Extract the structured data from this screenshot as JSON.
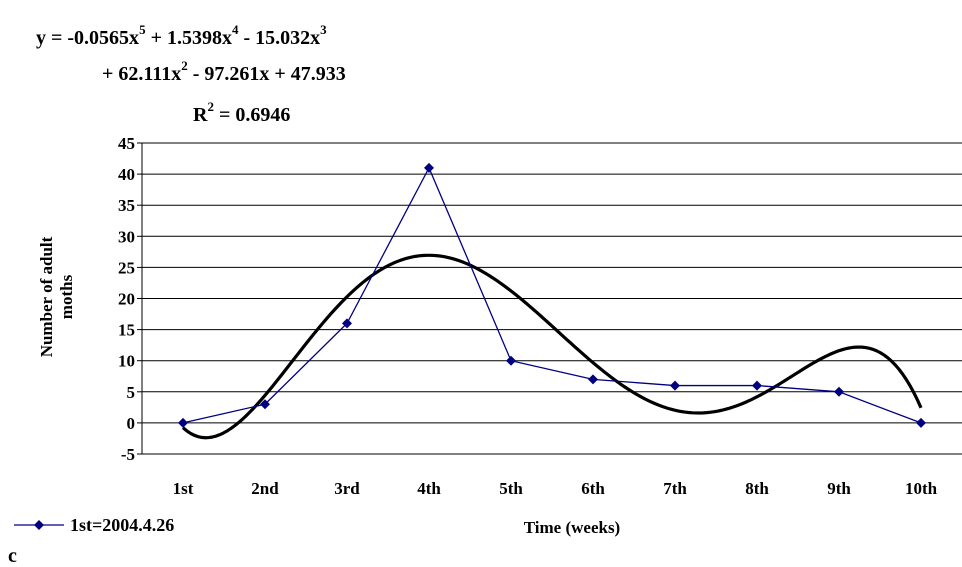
{
  "chart_data": {
    "type": "line",
    "equation": {
      "line1": "y = -0.0565x",
      "line1_exp1": "5",
      "line1_b": " + 1.5398x",
      "line1_exp2": "4",
      "line1_c": " - 15.032x",
      "line1_exp3": "3",
      "line2": "+ 62.111x",
      "line2_exp": "2",
      "line2_b": " - 97.261x + 47.933",
      "r2_a": "R",
      "r2_exp": "2",
      "r2_b": " = 0.6946"
    },
    "categories": [
      "1st",
      "2nd",
      "3rd",
      "4th",
      "5th",
      "6th",
      "7th",
      "8th",
      "9th",
      "10th"
    ],
    "series": [
      {
        "name": "1st=2004.4.26",
        "color": "#000080",
        "marker": "diamond",
        "values": [
          0,
          3,
          16,
          41,
          10,
          7,
          6,
          6,
          5,
          0
        ]
      }
    ],
    "trendline": {
      "type": "polynomial",
      "order": 5,
      "color": "#000000",
      "coefficients": [
        -0.0565,
        1.5398,
        -15.032,
        62.111,
        -97.261,
        47.933
      ]
    },
    "ylim": [
      -5,
      45
    ],
    "yticks": [
      -5,
      0,
      5,
      10,
      15,
      20,
      25,
      30,
      35,
      40,
      45
    ],
    "ylabel_line1": "Number of adult",
    "ylabel_line2": "moths",
    "xlabel": "Time (weeks)",
    "legend_label": "1st=2004.4.26",
    "legend_position": "bottom-left",
    "grid": "horizontal",
    "panel_label": "c"
  }
}
